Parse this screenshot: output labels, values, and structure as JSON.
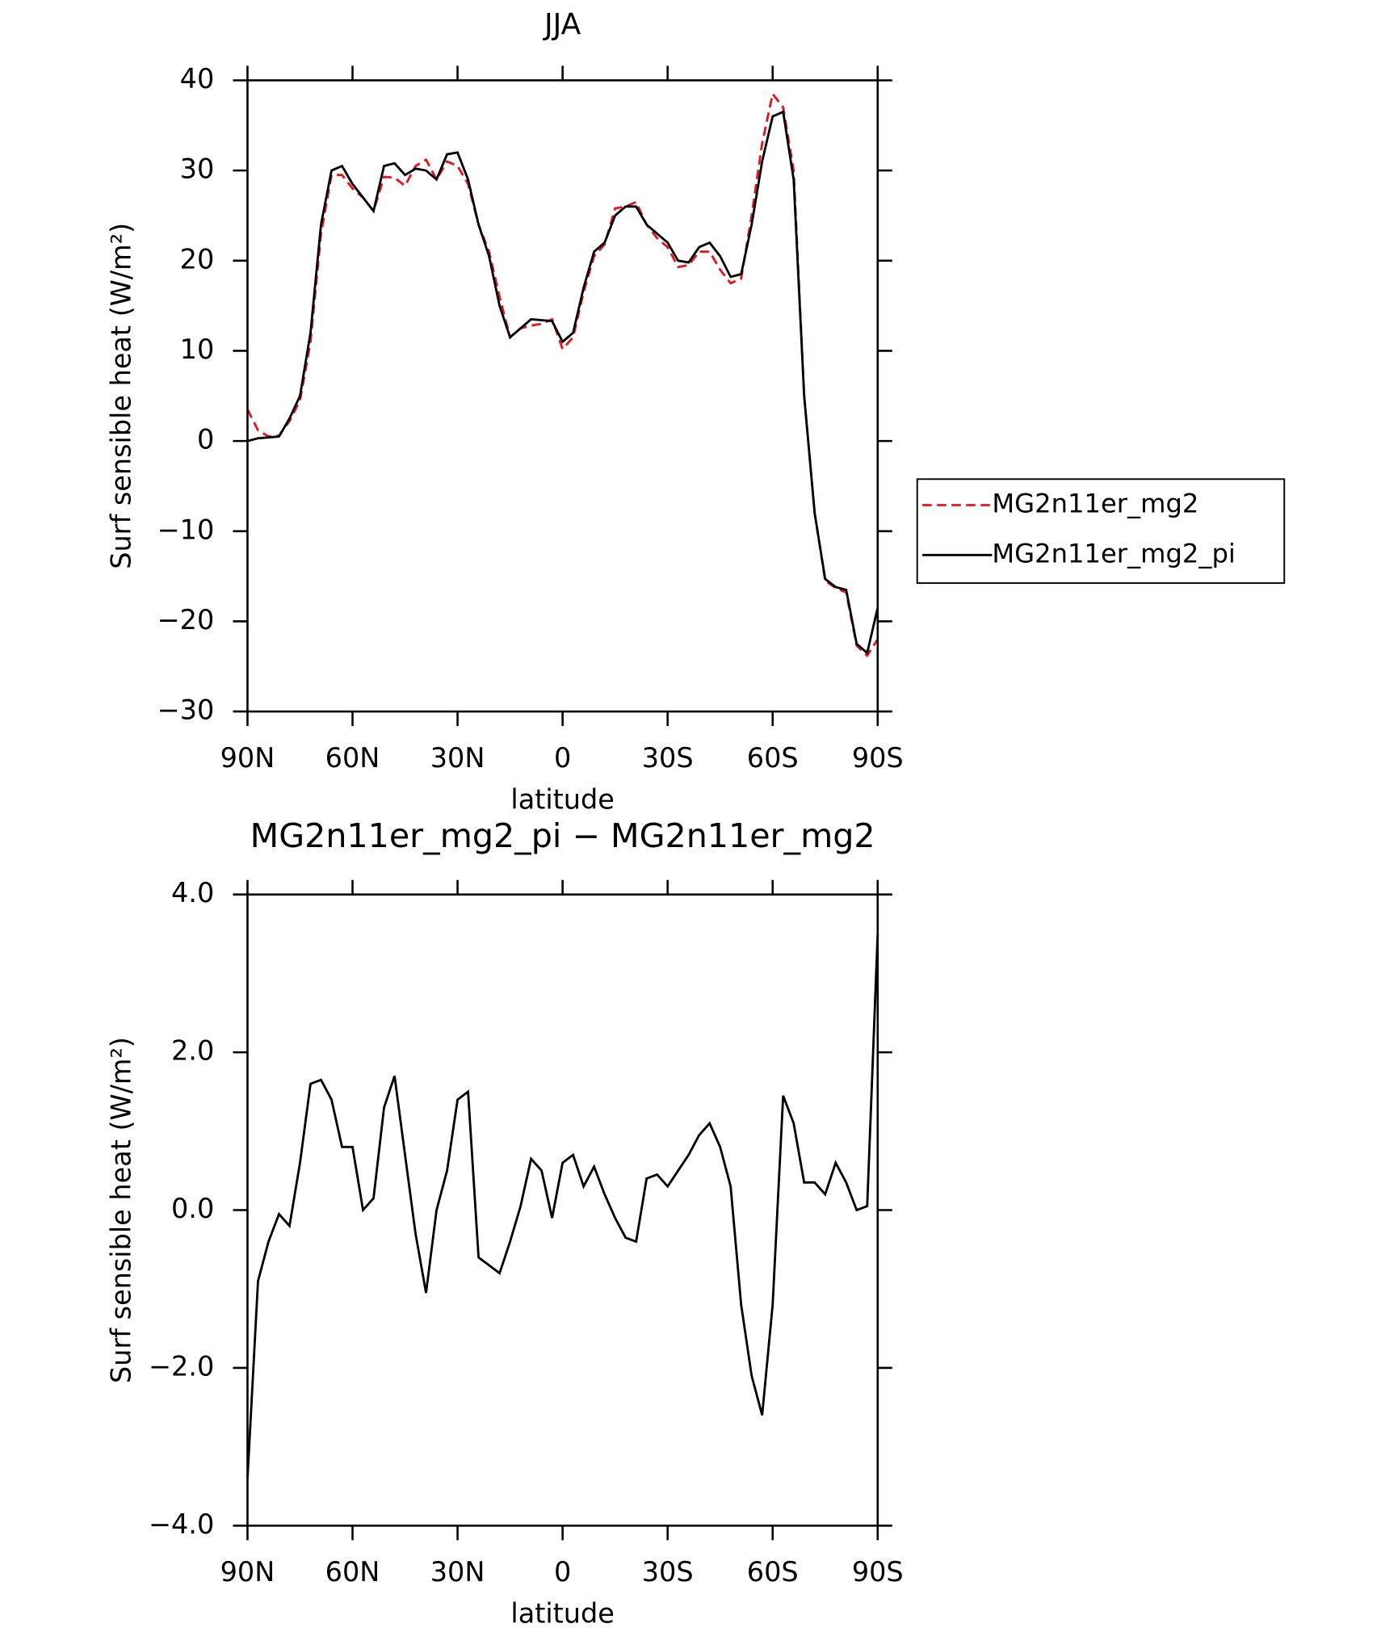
{
  "chart_data": [
    {
      "type": "line",
      "title": "JJA",
      "xlabel": "latitude",
      "ylabel": "Surf sensible heat (W/m²)",
      "x": [
        90,
        87,
        84,
        81,
        78,
        75,
        72,
        69,
        66,
        63,
        60,
        57,
        54,
        51,
        48,
        45,
        42,
        39,
        36,
        33,
        30,
        27,
        24,
        21,
        18,
        15,
        12,
        9,
        6,
        3,
        0,
        -3,
        -6,
        -9,
        -12,
        -15,
        -18,
        -21,
        -24,
        -27,
        -30,
        -33,
        -36,
        -39,
        -42,
        -45,
        -48,
        -51,
        -54,
        -57,
        -60,
        -63,
        -66,
        -69,
        -72,
        -75,
        -78,
        -81,
        -84,
        -87,
        -90
      ],
      "xlim": [
        90,
        -90
      ],
      "xticks": [
        {
          "value": 90,
          "label": "90N"
        },
        {
          "value": 60,
          "label": "60N"
        },
        {
          "value": 30,
          "label": "30N"
        },
        0,
        {
          "value": -30,
          "label": "30S"
        },
        {
          "value": -60,
          "label": "60S"
        },
        {
          "value": -90,
          "label": "90S"
        }
      ],
      "ylim": [
        -30,
        40
      ],
      "yticks": [
        {
          "value": -30,
          "label": "−30"
        },
        {
          "value": -20,
          "label": "−20"
        },
        {
          "value": -10,
          "label": "−10"
        },
        0,
        10,
        20,
        30,
        40
      ],
      "legend": "right",
      "series": [
        {
          "name": "MG2n11er_mg2",
          "color": "#e8141b",
          "dash": true,
          "values": [
            3.5,
            1.2,
            0.5,
            0.6,
            2.2,
            4.5,
            11,
            23,
            29.5,
            29.5,
            28,
            27,
            25.5,
            29.3,
            29.2,
            28.3,
            30.5,
            31.2,
            29,
            31,
            30.5,
            28.5,
            24,
            21,
            16,
            11.5,
            12.5,
            12.8,
            13,
            13.5,
            10.2,
            11.5,
            16.5,
            20.5,
            21.8,
            25.8,
            26,
            26.5,
            24,
            22.5,
            21.5,
            19.3,
            19.5,
            21,
            21,
            19,
            17.5,
            18,
            25,
            33,
            38.5,
            37,
            30,
            5,
            -8,
            -15.5,
            -16.3,
            -16.8,
            -22.7,
            -23.8,
            -22
          ]
        },
        {
          "name": "MG2n11er_mg2_pi",
          "color": "#000000",
          "dash": false,
          "values": [
            0,
            0.3,
            0.4,
            0.5,
            2.5,
            5,
            12,
            24,
            30,
            30.5,
            28.5,
            27,
            25.5,
            30.5,
            30.8,
            29.5,
            30.2,
            30,
            29,
            31.8,
            32,
            29,
            24,
            20.5,
            15,
            11.5,
            12.5,
            13.5,
            13.4,
            13.3,
            11,
            12,
            17,
            21,
            22,
            25,
            26,
            26,
            24,
            23,
            22,
            20,
            19.8,
            21.5,
            22,
            20.5,
            18.2,
            18.5,
            24,
            31,
            36,
            36.5,
            29,
            5,
            -8,
            -15.3,
            -16.2,
            -16.5,
            -22.5,
            -23.5,
            -18.5
          ]
        }
      ]
    },
    {
      "type": "line",
      "title": "MG2n11er_mg2_pi − MG2n11er_mg2",
      "xlabel": "latitude",
      "ylabel": "Surf sensible heat (W/m²)",
      "x": [
        90,
        87,
        84,
        81,
        78,
        75,
        72,
        69,
        66,
        63,
        60,
        57,
        54,
        51,
        48,
        45,
        42,
        39,
        36,
        33,
        30,
        27,
        24,
        21,
        18,
        15,
        12,
        9,
        6,
        3,
        0,
        -3,
        -6,
        -9,
        -12,
        -15,
        -18,
        -21,
        -24,
        -27,
        -30,
        -33,
        -36,
        -39,
        -42,
        -45,
        -48,
        -51,
        -54,
        -57,
        -60,
        -63,
        -66,
        -69,
        -72,
        -75,
        -78,
        -81,
        -84,
        -87,
        -90
      ],
      "xlim": [
        90,
        -90
      ],
      "xticks": [
        {
          "value": 90,
          "label": "90N"
        },
        {
          "value": 60,
          "label": "60N"
        },
        {
          "value": 30,
          "label": "30N"
        },
        0,
        {
          "value": -30,
          "label": "30S"
        },
        {
          "value": -60,
          "label": "60S"
        },
        {
          "value": -90,
          "label": "90S"
        }
      ],
      "ylim": [
        -4,
        4
      ],
      "yticks": [
        {
          "value": -4,
          "label": "−4.0"
        },
        {
          "value": -2,
          "label": "−2.0"
        },
        {
          "value": 0,
          "label": "0.0"
        },
        {
          "value": 2,
          "label": "2.0"
        },
        {
          "value": 4,
          "label": "4.0"
        }
      ],
      "series": [
        {
          "color": "#000000",
          "dash": false,
          "values": [
            -3.4,
            -0.9,
            -0.4,
            -0.05,
            -0.2,
            0.6,
            1.6,
            1.65,
            1.4,
            0.8,
            0.8,
            0,
            0.15,
            1.3,
            1.7,
            0.7,
            -0.3,
            -1.05,
            0,
            0.5,
            1.4,
            1.5,
            -0.6,
            -0.7,
            -0.8,
            -0.4,
            0.05,
            0.65,
            0.5,
            -0.1,
            0.6,
            0.7,
            0.3,
            0.55,
            0.2,
            -0.1,
            -0.35,
            -0.4,
            0.4,
            0.45,
            0.3,
            0.5,
            0.7,
            0.95,
            1.1,
            0.8,
            0.3,
            -1.2,
            -2.1,
            -2.6,
            -1.2,
            1.45,
            1.1,
            0.35,
            0.35,
            0.2,
            0.6,
            0.35,
            0,
            0.05,
            3.5
          ]
        }
      ]
    }
  ]
}
